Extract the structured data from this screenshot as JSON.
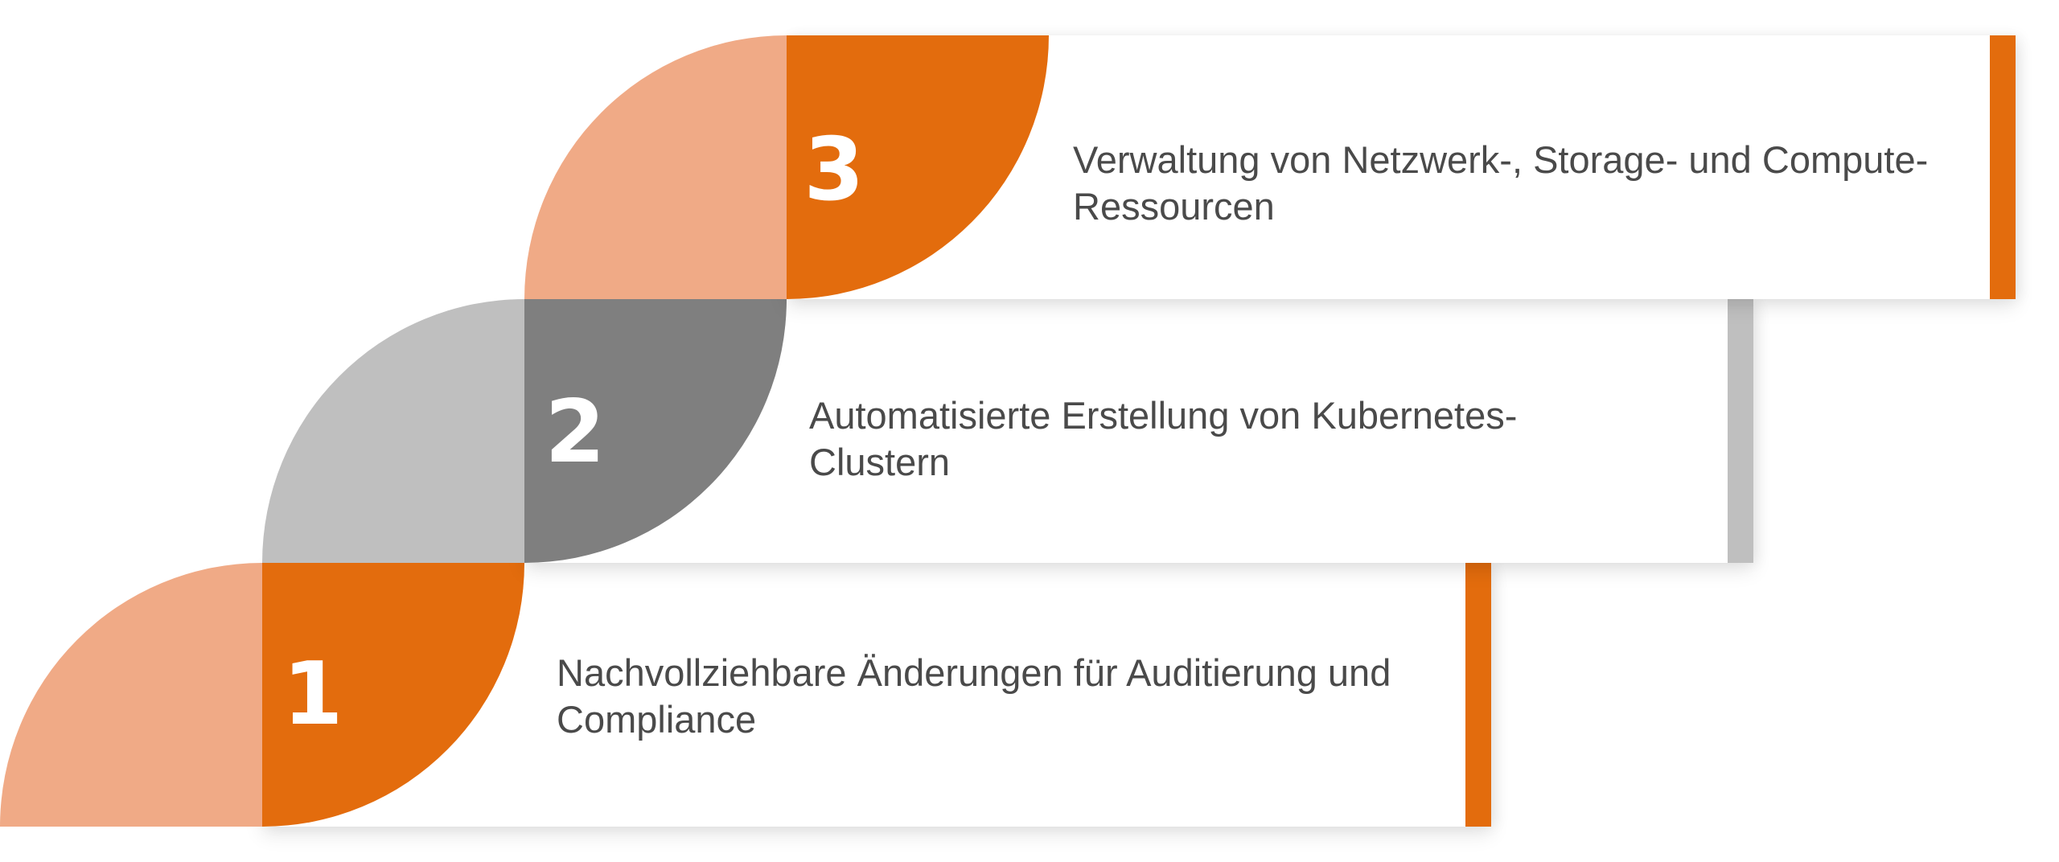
{
  "colors": {
    "orange": "#e36c0d",
    "orange_light": "#f0aa86",
    "gray": "#7f7f7f",
    "gray_light": "#bfbfbf",
    "text": "#4a4a4a"
  },
  "steps": [
    {
      "number": "1",
      "text": "Nachvollziehbare Änderungen für Auditierung und Compliance",
      "accent": "orange"
    },
    {
      "number": "2",
      "text": "Automatisierte Erstellung von Kubernetes-Clustern",
      "accent": "gray"
    },
    {
      "number": "3",
      "text": "Verwaltung von Netzwerk-, Storage- und Compute-Ressourcen",
      "accent": "orange"
    }
  ]
}
